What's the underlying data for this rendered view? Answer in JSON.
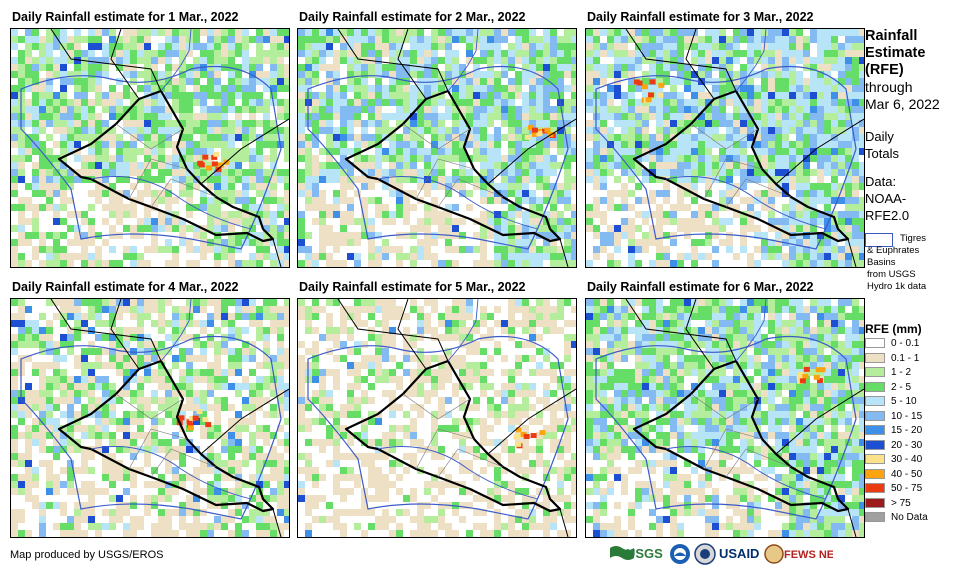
{
  "panels": [
    {
      "title": "Daily Rainfall estimate for 1 Mar., 2022",
      "date": "1 Mar., 2022"
    },
    {
      "title": "Daily Rainfall estimate for 2 Mar., 2022",
      "date": "2 Mar., 2022"
    },
    {
      "title": "Daily Rainfall estimate for 3 Mar., 2022",
      "date": "3 Mar., 2022"
    },
    {
      "title": "Daily Rainfall estimate for 4 Mar., 2022",
      "date": "4 Mar., 2022"
    },
    {
      "title": "Daily Rainfall estimate for 5 Mar., 2022",
      "date": "5 Mar., 2022"
    },
    {
      "title": "Daily Rainfall estimate for 6 Mar., 2022",
      "date": "6 Mar., 2022"
    }
  ],
  "side": {
    "title_line1": "Rainfall",
    "title_line2": "Estimate",
    "title_line3": "(RFE)",
    "through": "through",
    "through_date": "Mar 6, 2022",
    "daily1": "Daily",
    "daily2": "Totals",
    "data1": "Data:",
    "data2": "NOAA-",
    "data3": "RFE2.0",
    "basin_line1": "Tigres",
    "basin_line2": "& Euphrates",
    "basin_line3": "Basins",
    "basin_line4": "from USGS",
    "basin_line5": "Hydro 1k data"
  },
  "legend": {
    "title": "RFE (mm)",
    "items": [
      {
        "label": "0 - 0.1",
        "color": "#ffffff"
      },
      {
        "label": "0.1 - 1",
        "color": "#eee0c4"
      },
      {
        "label": "1 - 2",
        "color": "#b4ee9c"
      },
      {
        "label": "2 - 5",
        "color": "#66dd66"
      },
      {
        "label": "5 - 10",
        "color": "#b8e4f8"
      },
      {
        "label": "10 - 15",
        "color": "#84baf2"
      },
      {
        "label": "15 - 20",
        "color": "#3d8fe8"
      },
      {
        "label": "20 - 30",
        "color": "#1d4fd2"
      },
      {
        "label": "30 - 40",
        "color": "#fbe38c"
      },
      {
        "label": "40 - 50",
        "color": "#fca40d"
      },
      {
        "label": "50 - 75",
        "color": "#ec3b12"
      },
      {
        "label": "> 75",
        "color": "#9c1c1c"
      },
      {
        "label": "No Data",
        "color": "#a0a0a0"
      }
    ]
  },
  "credit": "Map produced by USGS/EROS",
  "logos": [
    "USGS",
    "NOAA",
    "USAID",
    "FEWS NET"
  ]
}
